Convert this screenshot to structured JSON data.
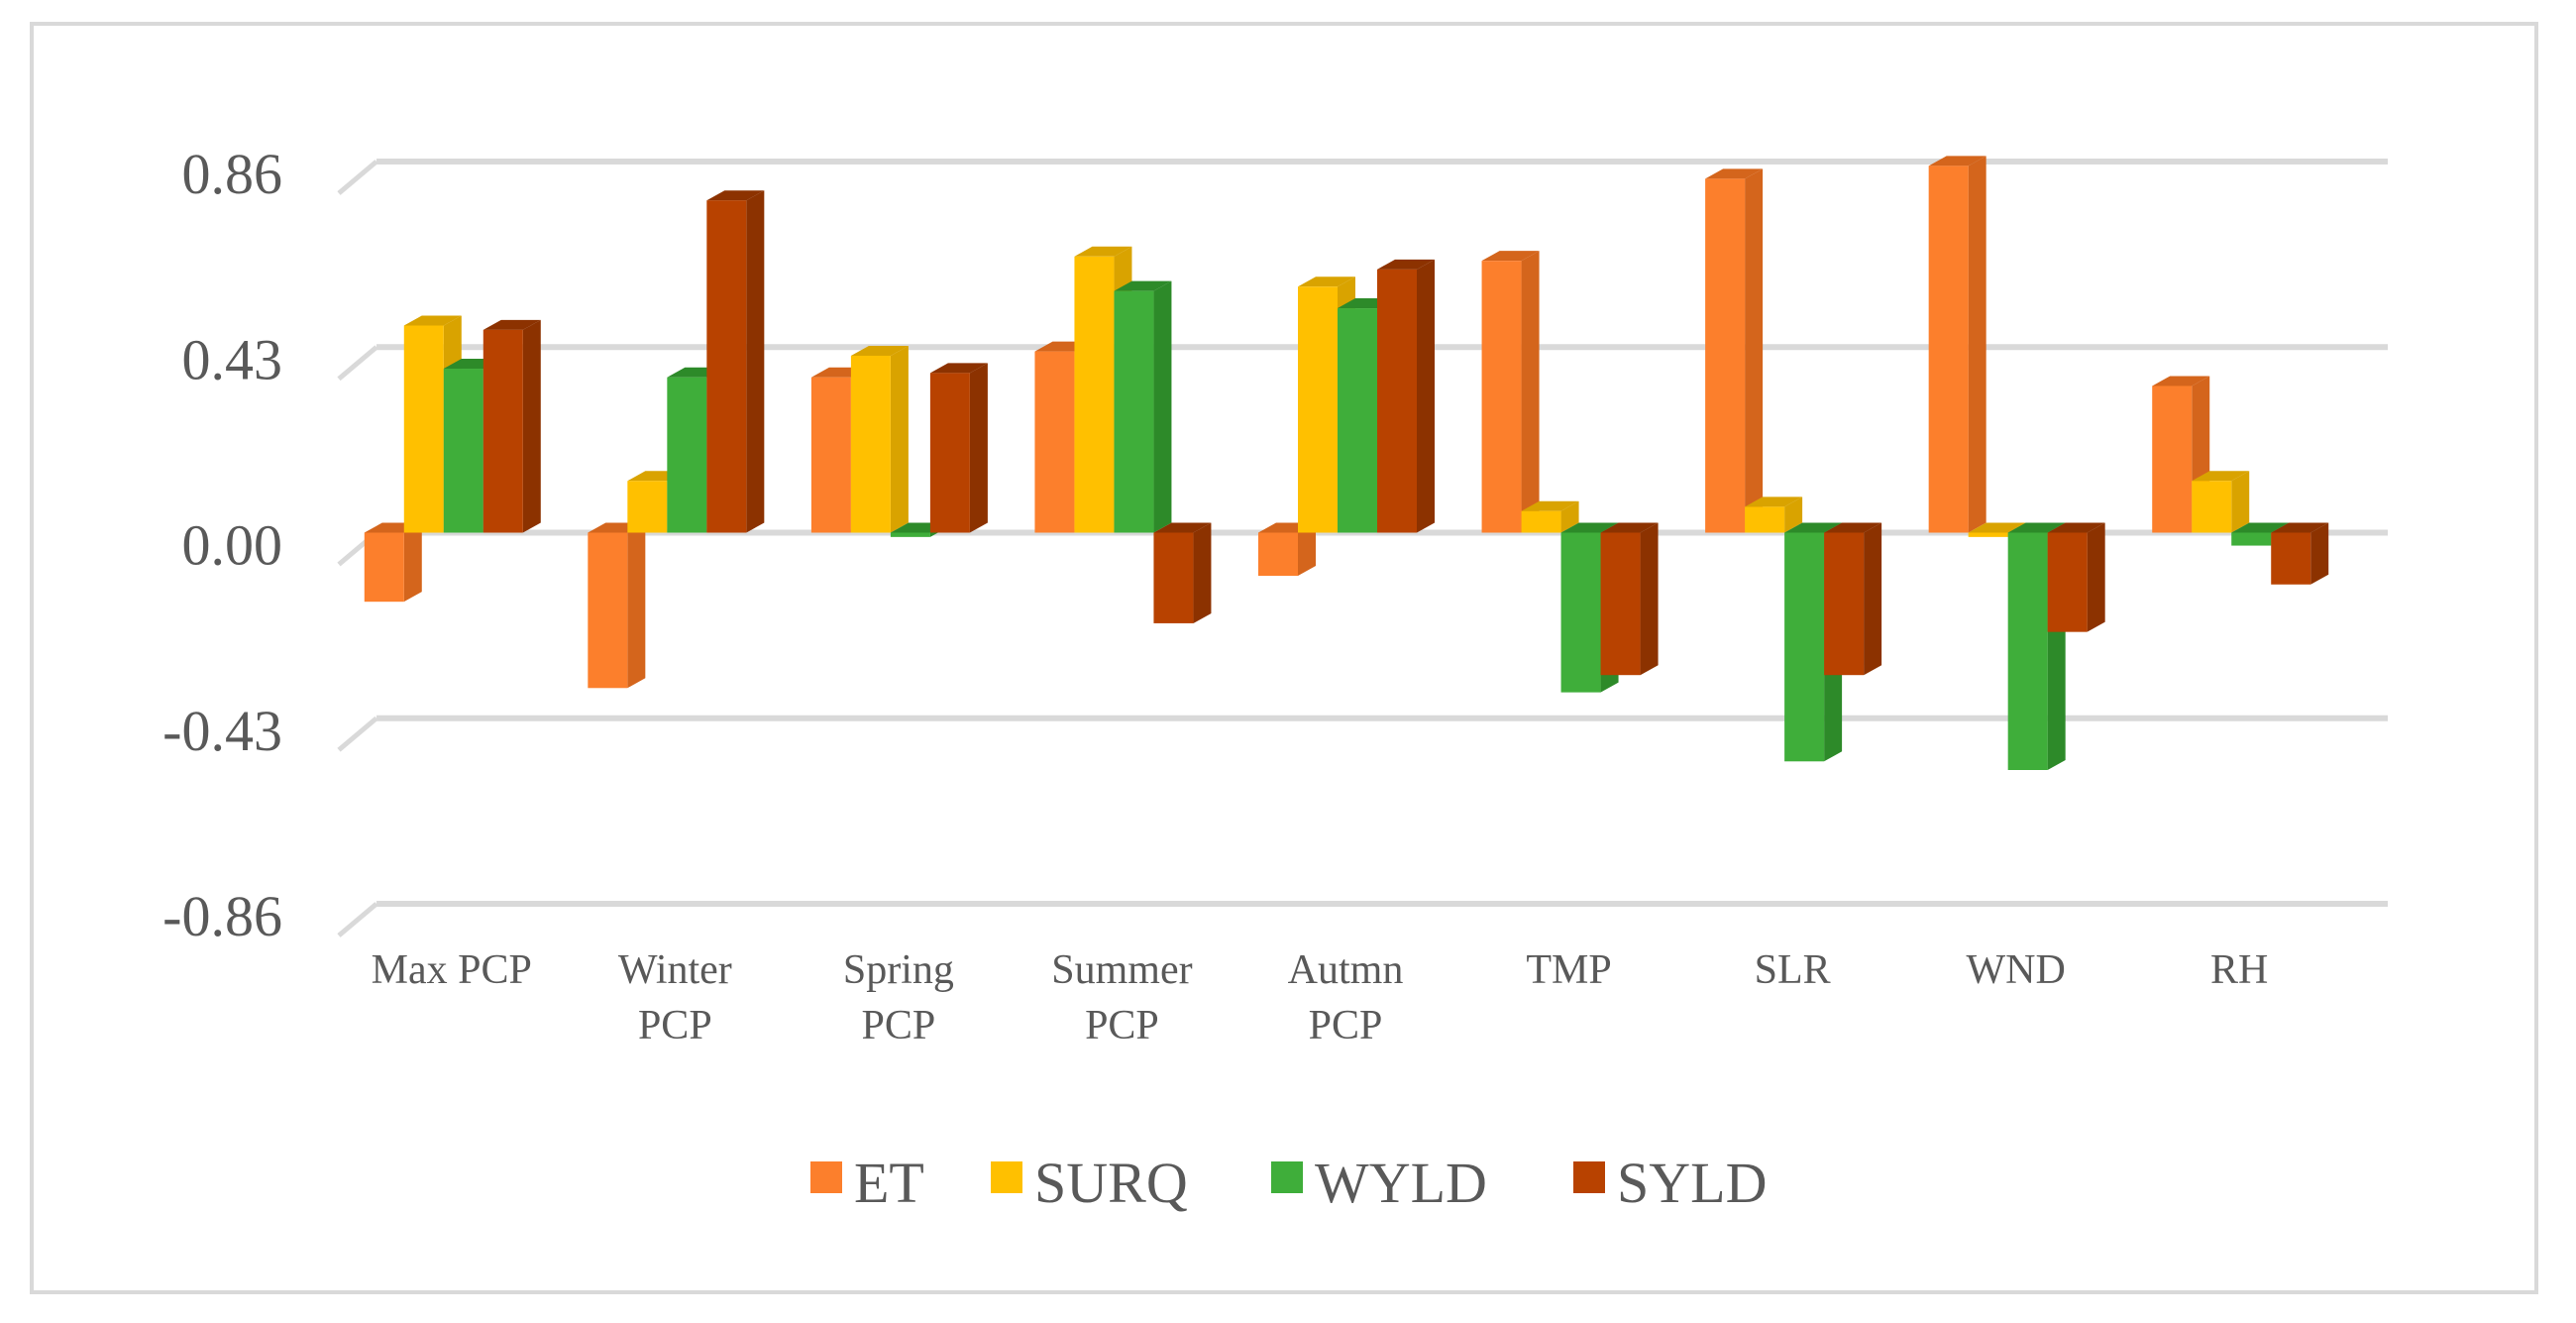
{
  "chart_data": {
    "type": "bar",
    "style": "3d-clustered-column",
    "title": "",
    "xlabel": "",
    "ylabel": "",
    "ylim": [
      -0.86,
      0.86
    ],
    "yticks": [
      "0.86",
      "0.43",
      "0.00",
      "-0.43",
      "-0.86"
    ],
    "ytick_values": [
      0.86,
      0.43,
      0.0,
      -0.43,
      -0.86
    ],
    "grid": true,
    "legend_position": "bottom",
    "categories": [
      [
        "Max PCP"
      ],
      [
        "Winter",
        "PCP"
      ],
      [
        "Spring",
        "PCP"
      ],
      [
        "Summer",
        "PCP"
      ],
      [
        "Autmn",
        "PCP"
      ],
      [
        "TMP"
      ],
      [
        "SLR"
      ],
      [
        "WND"
      ],
      [
        "RH"
      ]
    ],
    "series": [
      {
        "name": "ET",
        "color": "#fc7f2c",
        "side_color": "#d4651c",
        "values": [
          -0.16,
          -0.36,
          0.36,
          0.42,
          -0.1,
          0.63,
          0.82,
          0.85,
          0.34
        ]
      },
      {
        "name": "SURQ",
        "color": "#ffc000",
        "side_color": "#d9a300",
        "values": [
          0.48,
          0.12,
          0.41,
          0.64,
          0.57,
          0.05,
          0.06,
          -0.01,
          0.12
        ]
      },
      {
        "name": "WYLD",
        "color": "#3fae3a",
        "side_color": "#2d8a29",
        "values": [
          0.38,
          0.36,
          -0.01,
          0.56,
          0.52,
          -0.37,
          -0.53,
          -0.55,
          -0.03
        ]
      },
      {
        "name": "SYLD",
        "color": "#b84200",
        "side_color": "#8c3200",
        "values": [
          0.47,
          0.77,
          0.37,
          -0.21,
          0.61,
          -0.33,
          -0.33,
          -0.23,
          -0.12
        ]
      }
    ]
  }
}
